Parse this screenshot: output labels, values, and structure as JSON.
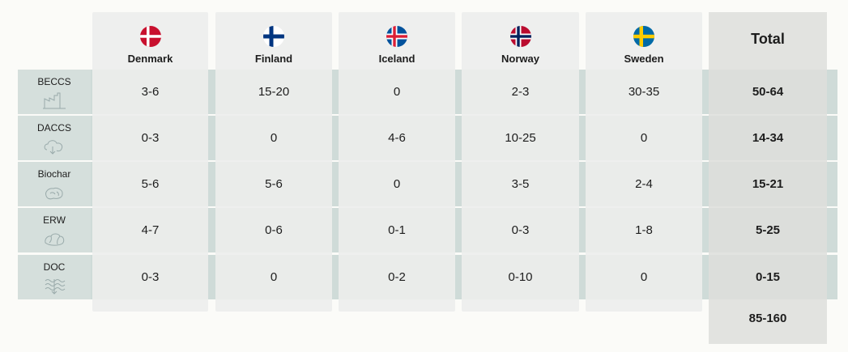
{
  "header": {
    "total_label": "Total",
    "countries": [
      {
        "name": "Denmark",
        "flag": "denmark-flag-icon"
      },
      {
        "name": "Finland",
        "flag": "finland-flag-icon"
      },
      {
        "name": "Iceland",
        "flag": "iceland-flag-icon"
      },
      {
        "name": "Norway",
        "flag": "norway-flag-icon"
      },
      {
        "name": "Sweden",
        "flag": "sweden-flag-icon"
      }
    ]
  },
  "rows": [
    {
      "method": "BECCS",
      "icon": "factory-icon",
      "values": [
        "3-6",
        "15-20",
        "0",
        "2-3",
        "30-35"
      ],
      "total": "50-64"
    },
    {
      "method": "DACCS",
      "icon": "air-capture-icon",
      "values": [
        "0-3",
        "0",
        "4-6",
        "10-25",
        "0"
      ],
      "total": "14-34"
    },
    {
      "method": "Biochar",
      "icon": "biochar-icon",
      "values": [
        "5-6",
        "5-6",
        "0",
        "3-5",
        "2-4"
      ],
      "total": "15-21"
    },
    {
      "method": "ERW",
      "icon": "rock-icon",
      "values": [
        "4-7",
        "0-6",
        "0-1",
        "0-3",
        "1-8"
      ],
      "total": "5-25"
    },
    {
      "method": "DOC",
      "icon": "ocean-icon",
      "values": [
        "0-3",
        "0",
        "0-2",
        "0-10",
        "0"
      ],
      "total": "0-15"
    }
  ],
  "grand_total": "85-160",
  "colors": {
    "denmark_red": "#c8102e",
    "finland_blue": "#003580",
    "iceland_blue": "#02529c",
    "iceland_red": "#dc1e35",
    "norway_red": "#ba0c2f",
    "norway_blue": "#00205b",
    "sweden_blue": "#006aa7",
    "sweden_yellow": "#fecc00"
  }
}
